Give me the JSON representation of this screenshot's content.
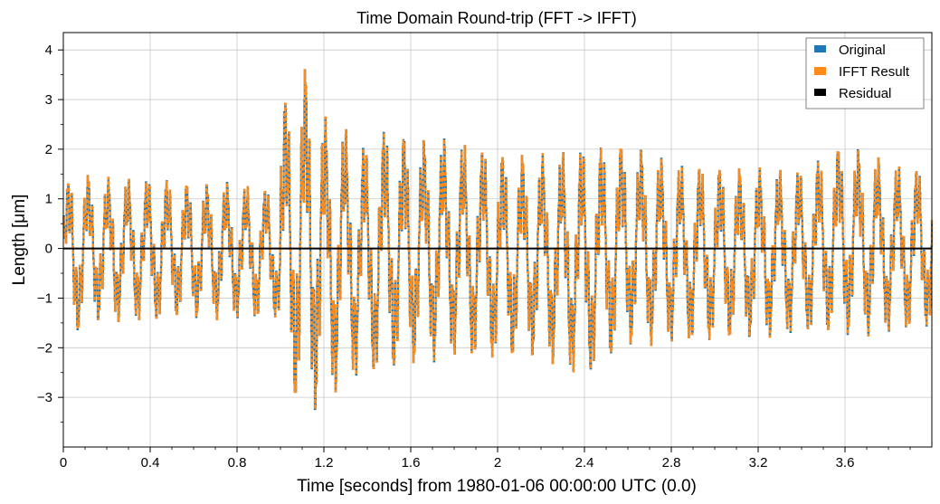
{
  "chart_data": {
    "type": "line",
    "title": "Time Domain Round-trip (FFT -> IFFT)",
    "xlabel": "Time [seconds] from 1980-01-06 00:00:00 UTC (0.0)",
    "ylabel": "Length [μm]",
    "xlim": [
      0,
      4.0
    ],
    "ylim": [
      -4.0,
      4.35
    ],
    "grid": true,
    "legend_position": "top-right",
    "x_ticks": [
      0,
      0.4,
      0.8,
      1.2,
      1.6,
      2,
      2.4,
      2.8,
      3.2,
      3.6
    ],
    "x_tick_labels": [
      "0",
      "0.4",
      "0.8",
      "1.2",
      "1.6",
      "2",
      "2.4",
      "2.8",
      "3.2",
      "3.6"
    ],
    "y_ticks": [
      -3,
      -2,
      -1,
      0,
      1,
      2,
      3,
      4
    ],
    "y_tick_labels": [
      "−3",
      "−2",
      "−1",
      "0",
      "1",
      "2",
      "3",
      "4"
    ],
    "envelope": {
      "x": [
        0,
        0.05,
        0.1,
        0.2,
        0.3,
        0.4,
        0.5,
        0.6,
        0.7,
        0.8,
        0.9,
        0.99,
        1.0,
        1.05,
        1.1,
        1.15,
        1.2,
        1.3,
        1.4,
        1.5,
        1.6,
        1.8,
        2.0,
        2.2,
        2.4,
        2.6,
        2.8,
        3.0,
        3.2,
        3.4,
        3.6,
        3.8,
        4.0
      ],
      "upper": [
        1.3,
        1.7,
        1.6,
        1.5,
        1.5,
        1.5,
        1.5,
        1.4,
        1.4,
        1.4,
        1.3,
        1.3,
        3.3,
        3.3,
        3.9,
        3.9,
        2.8,
        2.6,
        2.2,
        2.7,
        2.4,
        2.3,
        2.1,
        2.0,
        2.2,
        2.3,
        1.8,
        1.8,
        1.7,
        1.7,
        2.3,
        1.8,
        1.7
      ],
      "lower": [
        -1.2,
        -2.0,
        -1.5,
        -1.6,
        -1.5,
        -1.6,
        -1.5,
        -1.5,
        -1.5,
        -1.5,
        -1.5,
        -1.5,
        -3.0,
        -3.2,
        -3.6,
        -3.6,
        -3.3,
        -2.8,
        -2.7,
        -2.7,
        -2.5,
        -2.3,
        -2.4,
        -2.3,
        -2.8,
        -2.1,
        -2.0,
        -2.0,
        -1.9,
        -1.8,
        -1.9,
        -1.8,
        -1.7
      ]
    },
    "series": [
      {
        "name": "Original",
        "color": "#1f77b4",
        "style": "solid"
      },
      {
        "name": "IFFT Result",
        "color": "#ff8c1a",
        "style": "dotted"
      },
      {
        "name": "Residual",
        "color": "#000000",
        "style": "solid",
        "constant": 0
      }
    ]
  }
}
